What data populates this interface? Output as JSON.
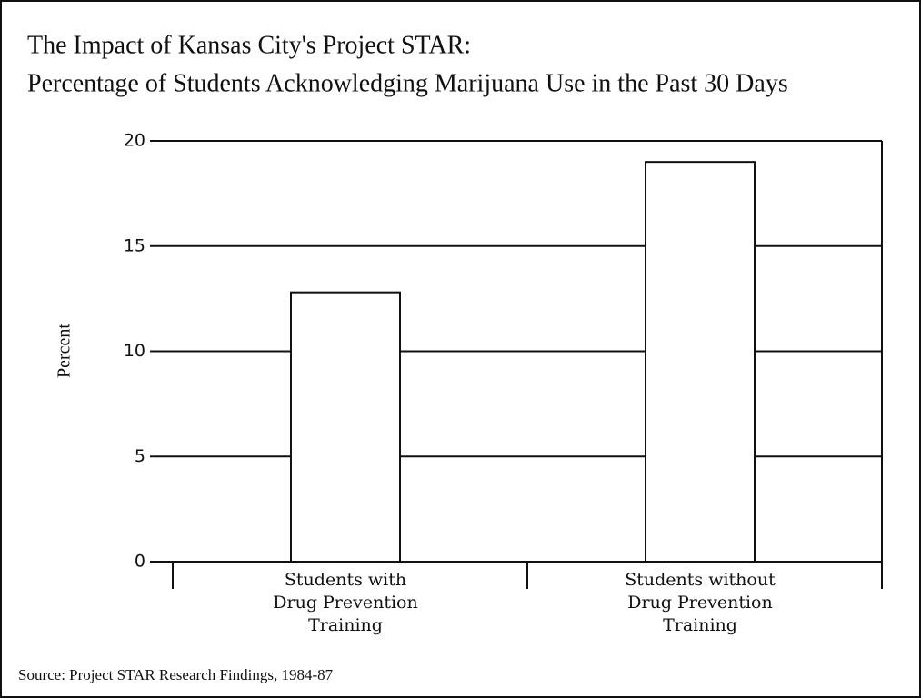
{
  "chart_data": {
    "type": "bar",
    "title": "The Impact of Kansas City's Project STAR:",
    "subtitle": "Percentage of Students Acknowledging Marijuana Use in the Past 30 Days",
    "y_label": "Percent",
    "categories": [
      "Students with\nDrug Prevention\nTraining",
      "Students without\nDrug Prevention\nTraining"
    ],
    "values": [
      12.8,
      19.0
    ],
    "color": "#ffffff",
    "ylim": [
      0,
      20
    ],
    "yticks": [
      0,
      5,
      10,
      15,
      20
    ],
    "grid": true,
    "source": "Source: Project STAR Research Findings, 1984-87"
  }
}
